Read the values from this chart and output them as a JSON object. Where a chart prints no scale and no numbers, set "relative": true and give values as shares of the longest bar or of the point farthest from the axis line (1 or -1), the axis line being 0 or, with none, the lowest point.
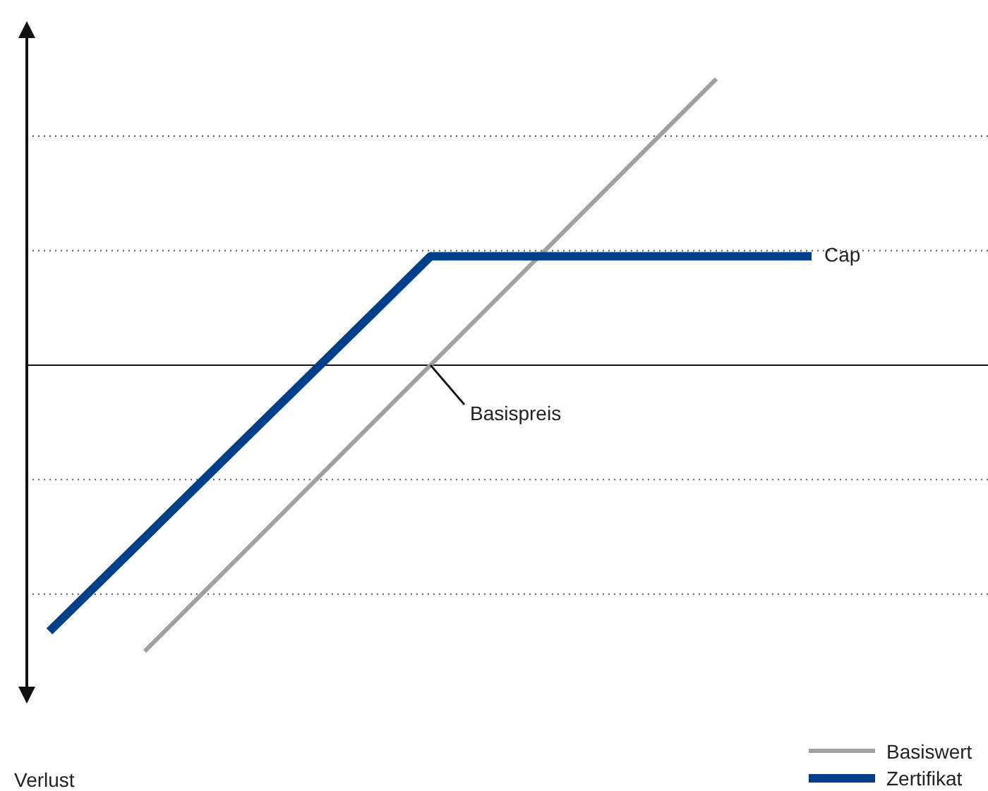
{
  "chart_data": {
    "type": "line",
    "relative": true,
    "grid": "y",
    "legend": "bottom right",
    "marker": "none",
    "line_style": "solid",
    "categories": [
      null,
      null,
      null,
      null,
      null,
      null,
      null,
      null,
      null
    ],
    "series": [
      {
        "name": "Basiswert",
        "color": "#a0a0a0",
        "values": [
          null,
          -1,
          -0.667,
          -0.333,
          0,
          0.333,
          0.667,
          1,
          null
        ]
      },
      {
        "name": "Zertifikat",
        "color": "#003f8a",
        "values": [
          -0.93,
          -0.603,
          -0.275,
          0.052,
          0.38,
          0.38,
          0.38,
          0.38,
          0.38
        ]
      }
    ],
    "annotations": [
      "Cap",
      "Basispreis",
      "Verlust"
    ]
  }
}
